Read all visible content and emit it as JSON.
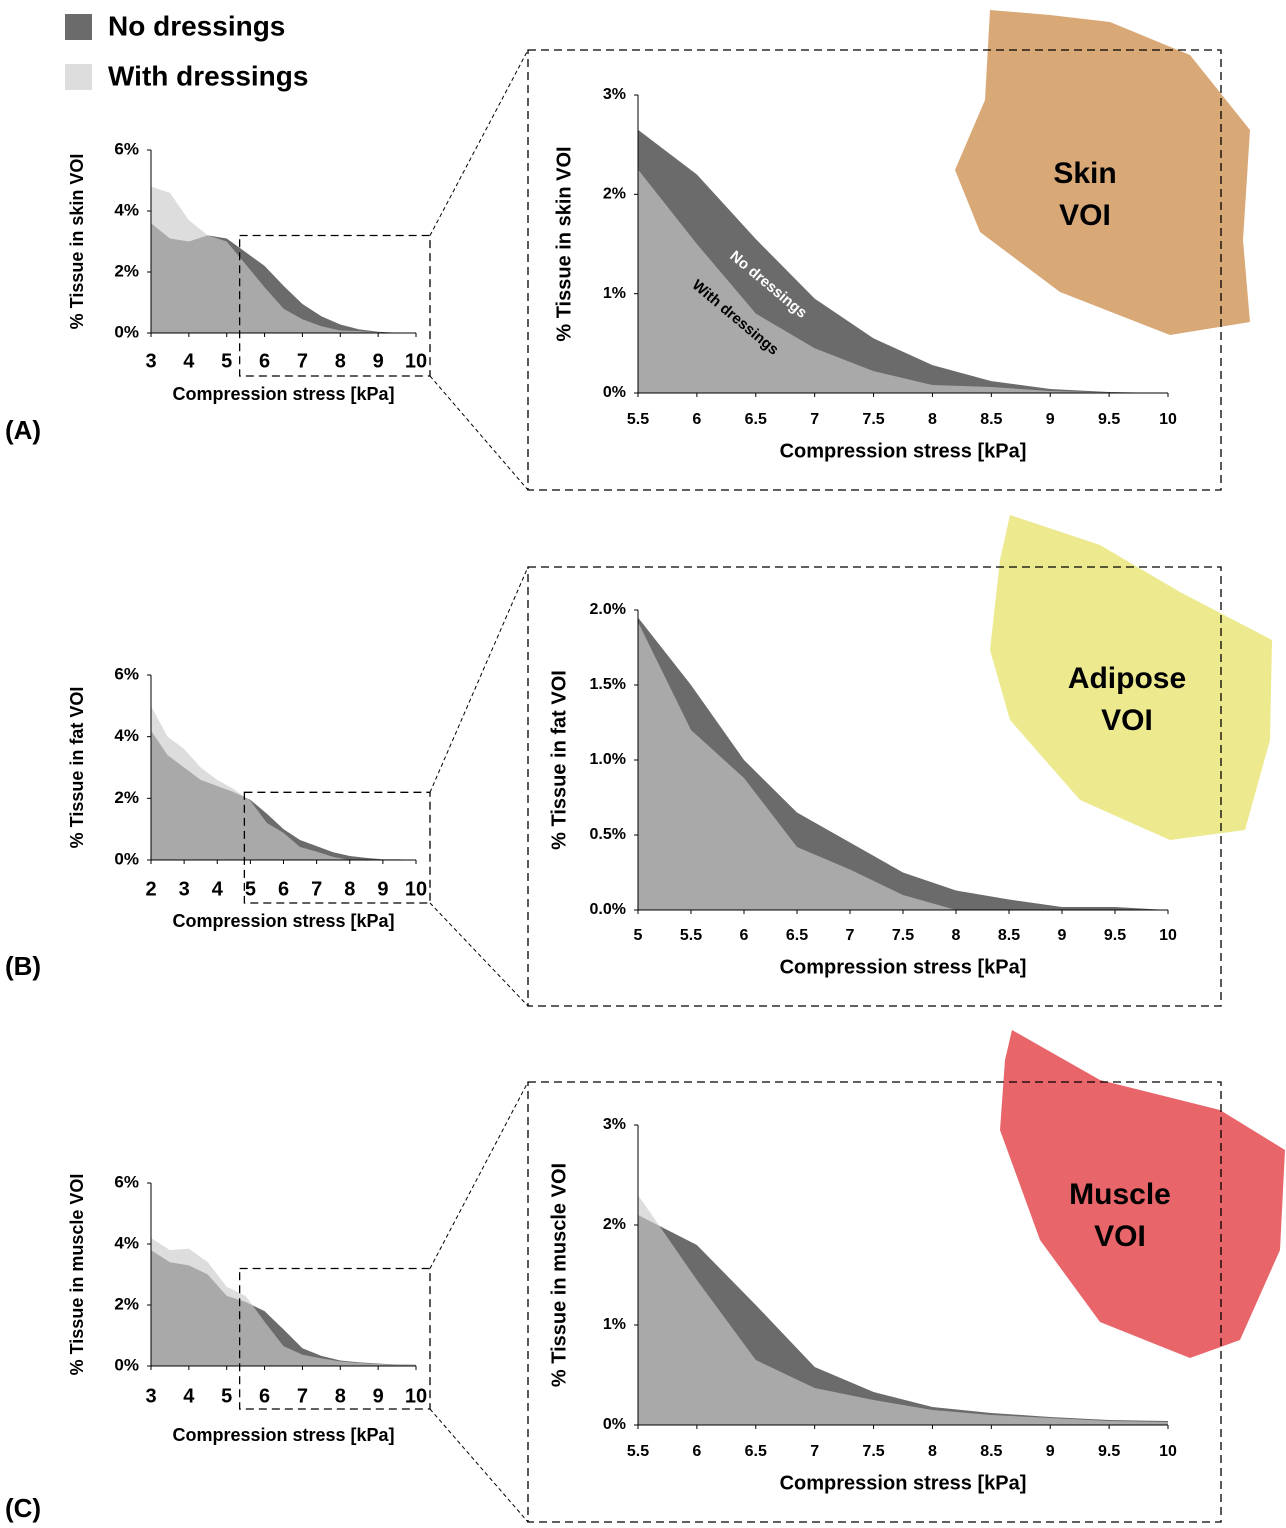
{
  "panels": [
    {
      "label": "(A)",
      "shape_label": [
        "Skin",
        "VOI"
      ]
    },
    {
      "label": "(B)",
      "shape_label": [
        "Adipose",
        "VOI"
      ]
    },
    {
      "label": "(C)",
      "shape_label": [
        "Muscle",
        "VOI"
      ]
    }
  ],
  "chart_data": [
    {
      "type": "area",
      "x_label": "Compression stress [kPa]",
      "y_label": "% Tissue in skin VOI",
      "x": [
        3,
        3.5,
        4,
        4.5,
        5,
        5.5,
        6,
        6.5,
        7,
        7.5,
        8,
        8.5,
        9,
        9.5,
        10
      ],
      "series": [
        {
          "name": "No dressings",
          "color": "#6b6b6b",
          "values": [
            3.6,
            3.1,
            3.0,
            3.2,
            3.1,
            2.65,
            2.2,
            1.55,
            0.95,
            0.55,
            0.28,
            0.12,
            0.04,
            0.01,
            0
          ]
        },
        {
          "name": "With dressings",
          "color": "#cbcbcb",
          "values": [
            4.8,
            4.6,
            3.7,
            3.2,
            3.0,
            2.25,
            1.5,
            0.8,
            0.45,
            0.22,
            0.08,
            0.06,
            0.02,
            0.005,
            0
          ]
        }
      ],
      "xlim": [
        3,
        10
      ],
      "xticks": [
        3,
        4,
        5,
        6,
        7,
        8,
        9,
        10
      ],
      "ylim": [
        0,
        6
      ],
      "yticks": [
        {
          "value": 0,
          "label": "0%"
        },
        {
          "value": 2,
          "label": "2%"
        },
        {
          "value": 4,
          "label": "4%"
        },
        {
          "value": 6,
          "label": "6%"
        }
      ]
    },
    {
      "type": "area",
      "x_label": "Compression stress [kPa]",
      "y_label": "% Tissue in skin VOI",
      "annotations": [
        "No dressings",
        "With dressings"
      ],
      "x": [
        5.5,
        6,
        6.5,
        7,
        7.5,
        8,
        8.5,
        9,
        9.5,
        10
      ],
      "series": [
        {
          "name": "No dressings",
          "color": "#6b6b6b",
          "values": [
            2.65,
            2.2,
            1.55,
            0.95,
            0.55,
            0.28,
            0.12,
            0.04,
            0.01,
            0
          ]
        },
        {
          "name": "With dressings",
          "color": "#cbcbcb",
          "values": [
            2.25,
            1.5,
            0.8,
            0.45,
            0.22,
            0.08,
            0.06,
            0.02,
            0.005,
            0
          ]
        }
      ],
      "xlim": [
        5.5,
        10
      ],
      "xticks": [
        5.5,
        6,
        6.5,
        7,
        7.5,
        8,
        8.5,
        9,
        9.5,
        10
      ],
      "ylim": [
        0,
        3
      ],
      "yticks": [
        {
          "value": 0,
          "label": "0%"
        },
        {
          "value": 1,
          "label": "1%"
        },
        {
          "value": 2,
          "label": "2%"
        },
        {
          "value": 3,
          "label": "3%"
        }
      ]
    },
    {
      "type": "area",
      "x_label": "Compression stress [kPa]",
      "y_label": "% Tissue in fat VOI",
      "x": [
        2,
        2.5,
        3,
        3.5,
        4,
        4.5,
        5,
        5.5,
        6,
        6.5,
        7,
        7.5,
        8,
        8.5,
        9,
        9.5,
        10
      ],
      "series": [
        {
          "name": "No dressings",
          "color": "#6b6b6b",
          "values": [
            4.2,
            3.4,
            3.0,
            2.6,
            2.4,
            2.2,
            1.95,
            1.5,
            1.0,
            0.65,
            0.45,
            0.25,
            0.13,
            0.07,
            0.02,
            0.02,
            0
          ]
        },
        {
          "name": "With dressings",
          "color": "#cbcbcb",
          "values": [
            5.0,
            4.0,
            3.6,
            3.0,
            2.6,
            2.3,
            1.92,
            1.2,
            0.88,
            0.42,
            0.27,
            0.1,
            0,
            0,
            0,
            0,
            0
          ]
        }
      ],
      "xlim": [
        2,
        10
      ],
      "xticks": [
        2,
        3,
        4,
        5,
        6,
        7,
        8,
        9,
        10
      ],
      "ylim": [
        0,
        6
      ],
      "yticks": [
        {
          "value": 0,
          "label": "0%"
        },
        {
          "value": 2,
          "label": "2%"
        },
        {
          "value": 4,
          "label": "4%"
        },
        {
          "value": 6,
          "label": "6%"
        }
      ]
    },
    {
      "type": "area",
      "x_label": "Compression stress [kPa]",
      "y_label": "% Tissue in fat VOI",
      "x": [
        5,
        5.5,
        6,
        6.5,
        7,
        7.5,
        8,
        8.5,
        9,
        9.5,
        10
      ],
      "series": [
        {
          "name": "No dressings",
          "color": "#6b6b6b",
          "values": [
            1.95,
            1.5,
            1.0,
            0.65,
            0.45,
            0.25,
            0.13,
            0.07,
            0.02,
            0.02,
            0
          ]
        },
        {
          "name": "With dressings",
          "color": "#cbcbcb",
          "values": [
            1.92,
            1.2,
            0.88,
            0.42,
            0.27,
            0.1,
            0,
            0,
            0,
            0,
            0
          ]
        }
      ],
      "xlim": [
        5,
        10
      ],
      "xticks": [
        5,
        5.5,
        6,
        6.5,
        7,
        7.5,
        8,
        8.5,
        9,
        9.5,
        10
      ],
      "ylim": [
        0,
        2
      ],
      "yticks": [
        {
          "value": 0,
          "label": "0.0%"
        },
        {
          "value": 0.5,
          "label": "0.5%"
        },
        {
          "value": 1,
          "label": "1.0%"
        },
        {
          "value": 1.5,
          "label": "1.5%"
        },
        {
          "value": 2,
          "label": "2.0%"
        }
      ]
    },
    {
      "type": "area",
      "x_label": "Compression stress [kPa]",
      "y_label": "% Tissue in muscle VOI",
      "x": [
        3,
        3.5,
        4,
        4.5,
        5,
        5.5,
        6,
        6.5,
        7,
        7.5,
        8,
        8.5,
        9,
        9.5,
        10
      ],
      "series": [
        {
          "name": "No dressings",
          "color": "#6b6b6b",
          "values": [
            3.8,
            3.4,
            3.3,
            3.0,
            2.3,
            2.1,
            1.8,
            1.2,
            0.58,
            0.33,
            0.18,
            0.12,
            0.08,
            0.05,
            0.04
          ]
        },
        {
          "name": "With dressings",
          "color": "#cbcbcb",
          "values": [
            4.2,
            3.8,
            3.85,
            3.4,
            2.6,
            2.3,
            1.45,
            0.65,
            0.37,
            0.25,
            0.15,
            0.1,
            0.07,
            0.04,
            0.03
          ]
        }
      ],
      "xlim": [
        3,
        10
      ],
      "xticks": [
        3,
        4,
        5,
        6,
        7,
        8,
        9,
        10
      ],
      "ylim": [
        0,
        6
      ],
      "yticks": [
        {
          "value": 0,
          "label": "0%"
        },
        {
          "value": 2,
          "label": "2%"
        },
        {
          "value": 4,
          "label": "4%"
        },
        {
          "value": 6,
          "label": "6%"
        }
      ]
    },
    {
      "type": "area",
      "x_label": "Compression stress [kPa]",
      "y_label": "% Tissue in muscle VOI",
      "x": [
        5.5,
        6,
        6.5,
        7,
        7.5,
        8,
        8.5,
        9,
        9.5,
        10
      ],
      "series": [
        {
          "name": "No dressings",
          "color": "#6b6b6b",
          "values": [
            2.1,
            1.8,
            1.2,
            0.58,
            0.33,
            0.18,
            0.12,
            0.08,
            0.05,
            0.04
          ]
        },
        {
          "name": "With dressings",
          "color": "#cbcbcb",
          "values": [
            2.3,
            1.45,
            0.65,
            0.37,
            0.25,
            0.15,
            0.1,
            0.07,
            0.04,
            0.03
          ]
        }
      ],
      "xlim": [
        5.5,
        10
      ],
      "xticks": [
        5.5,
        6,
        6.5,
        7,
        7.5,
        8,
        8.5,
        9,
        9.5,
        10
      ],
      "ylim": [
        0,
        3
      ],
      "yticks": [
        {
          "value": 0,
          "label": "0%"
        },
        {
          "value": 1,
          "label": "1%"
        },
        {
          "value": 2,
          "label": "2%"
        },
        {
          "value": 3,
          "label": "3%"
        }
      ]
    }
  ]
}
